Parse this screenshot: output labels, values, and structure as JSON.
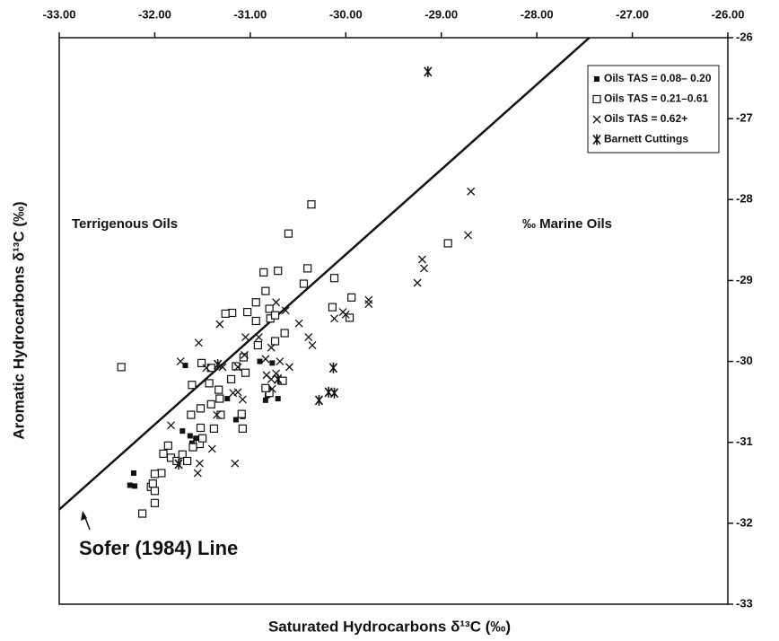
{
  "chart_data": {
    "type": "scatter",
    "x_label": "Saturated Hydrocarbons δ¹³C (‰)",
    "y_label": "Aromatic Hydrocarbons δ¹³C (‰)",
    "xlim": [
      -33,
      -26
    ],
    "ylim": [
      -33,
      -26
    ],
    "xticks": [
      {
        "value": -33,
        "label": "-33.00"
      },
      {
        "value": -32,
        "label": "-32.00"
      },
      {
        "value": -31,
        "label": "-31.00"
      },
      {
        "value": -30,
        "label": "-30.00"
      },
      {
        "value": -29,
        "label": "-29.00"
      },
      {
        "value": -28,
        "label": "-28.00"
      },
      {
        "value": -27,
        "label": "-27.00"
      },
      {
        "value": -26,
        "label": "-26.00"
      }
    ],
    "yticks": [
      -33,
      -32,
      -31,
      -30,
      -29,
      -28,
      -27,
      -26
    ],
    "x_axis_position": "top",
    "y_axis_position": "right",
    "legend_position": "upper right",
    "annotations": [
      "Terrigenous Oils",
      "‰ Marine Oils"
    ],
    "reference_line": {
      "name": "Sofer (1984) Line",
      "x": [
        -33,
        -27.45
      ],
      "y": [
        -31.83,
        -26
      ]
    },
    "series": [
      {
        "name": "Oils TAS = 0.08– 0.20",
        "marker": "square-filled",
        "color": "#111111",
        "x": [
          -32.26,
          -32.21,
          -32.22,
          -31.68,
          -31.71,
          -31.63,
          -31.61,
          -31.58,
          -31.57,
          -31.24,
          -31.15,
          -31.08,
          -30.9,
          -30.77,
          -30.71,
          -30.84,
          -30.82,
          -30.81
        ],
        "values": [
          -31.53,
          -31.54,
          -31.38,
          -30.05,
          -30.86,
          -30.92,
          -31.01,
          -31.05,
          -30.95,
          -30.46,
          -30.72,
          -30.68,
          -30.0,
          -30.02,
          -30.46,
          -30.48,
          -30.42,
          -30.34
        ]
      },
      {
        "name": "Oils TAS = 0.21–0.61",
        "marker": "square-open",
        "color": "#111111",
        "x": [
          -32.35,
          -30.36,
          -30.6,
          -30.4,
          -30.44,
          -30.71,
          -30.86,
          -30.84,
          -30.12,
          -29.94,
          -29.96,
          -30.14,
          -28.93,
          -30.8,
          -30.79,
          -30.94,
          -31.03,
          -31.19,
          -31.26,
          -30.64,
          -30.74,
          -30.94,
          -30.74,
          -30.92,
          -31.07,
          -31.15,
          -31.2,
          -31.05,
          -31.41,
          -31.43,
          -31.33,
          -31.32,
          -31.41,
          -31.61,
          -31.62,
          -31.52,
          -31.31,
          -31.08,
          -31.09,
          -30.66,
          -30.8,
          -30.84,
          -31.52,
          -31.53,
          -31.6,
          -31.38,
          -31.5,
          -31.86,
          -31.91,
          -31.83,
          -31.77,
          -31.71,
          -31.66,
          -31.93,
          -32.0,
          -32.04,
          -32.0,
          -32.0,
          -32.13,
          -32.02,
          -31.51
        ],
        "values": [
          -30.07,
          -28.06,
          -28.42,
          -28.85,
          -29.04,
          -28.88,
          -28.9,
          -29.13,
          -28.97,
          -29.21,
          -29.46,
          -29.33,
          -28.54,
          -29.35,
          -29.47,
          -29.27,
          -29.39,
          -29.4,
          -29.41,
          -29.65,
          -29.43,
          -29.5,
          -29.75,
          -29.8,
          -29.95,
          -30.06,
          -30.22,
          -30.14,
          -30.08,
          -30.27,
          -30.35,
          -30.46,
          -30.53,
          -30.29,
          -30.66,
          -30.58,
          -30.66,
          -30.83,
          -30.65,
          -30.24,
          -30.39,
          -30.33,
          -30.82,
          -31.02,
          -31.06,
          -30.83,
          -30.95,
          -31.04,
          -31.14,
          -31.19,
          -31.23,
          -31.15,
          -31.23,
          -31.38,
          -31.39,
          -31.55,
          -31.6,
          -31.75,
          -31.88,
          -31.51,
          -30.02
        ]
      },
      {
        "name": "Oils TAS = 0.62+",
        "marker": "x",
        "color": "#111111",
        "x": [
          -28.69,
          -28.72,
          -29.2,
          -29.18,
          -29.25,
          -29.76,
          -29.76,
          -30.03,
          -30.0,
          -30.12,
          -30.49,
          -30.39,
          -30.35,
          -30.73,
          -30.63,
          -31.05,
          -31.32,
          -31.54,
          -31.73,
          -30.91,
          -30.78,
          -30.84,
          -30.59,
          -30.69,
          -30.73,
          -30.78,
          -31.06,
          -31.13,
          -31.29,
          -31.46,
          -31.13,
          -31.08,
          -31.18,
          -31.35,
          -31.4,
          -31.53,
          -31.55,
          -31.16,
          -31.83,
          -30.77,
          -30.83
        ],
        "values": [
          -27.9,
          -28.44,
          -28.74,
          -28.85,
          -29.03,
          -29.24,
          -29.29,
          -29.39,
          -29.42,
          -29.47,
          -29.53,
          -29.7,
          -29.8,
          -29.27,
          -29.37,
          -29.7,
          -29.54,
          -29.77,
          -30.0,
          -29.7,
          -29.83,
          -29.97,
          -30.07,
          -30.0,
          -30.15,
          -30.22,
          -29.92,
          -30.07,
          -30.07,
          -30.08,
          -30.38,
          -30.47,
          -30.39,
          -30.66,
          -31.08,
          -31.26,
          -31.38,
          -31.26,
          -30.79,
          -30.34,
          -30.17
        ]
      },
      {
        "name": "Barnett Cuttings",
        "marker": "asterisk",
        "color": "#111111",
        "x": [
          -29.14,
          -31.34,
          -31.75,
          -30.13,
          -30.18,
          -30.12,
          -30.28,
          -30.71
        ],
        "values": [
          -26.42,
          -30.04,
          -31.27,
          -30.08,
          -30.38,
          -30.39,
          -30.48,
          -30.22
        ]
      }
    ]
  }
}
